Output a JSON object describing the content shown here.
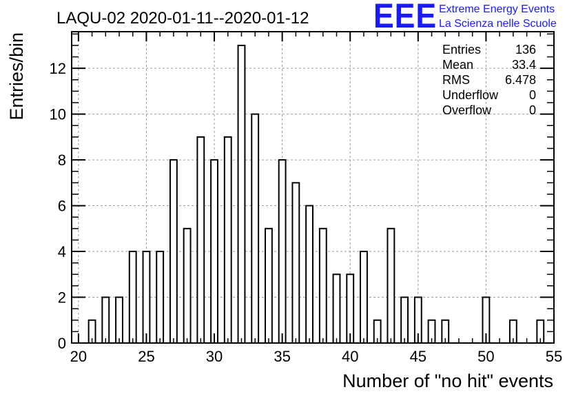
{
  "logo": {
    "mark": "EEE",
    "line1": "Extreme Energy Events",
    "line2": "La Scienza nelle Scuole",
    "color": "#1a1aff"
  },
  "stats": [
    {
      "label": "Entries",
      "value": "136"
    },
    {
      "label": "Mean",
      "value": "33.4"
    },
    {
      "label": "RMS",
      "value": "6.478"
    },
    {
      "label": "Underflow",
      "value": "0"
    },
    {
      "label": "Overflow",
      "value": "0"
    }
  ],
  "chart_data": {
    "type": "bar",
    "title": "LAQU-02 2020-01-11--2020-01-12",
    "xlabel": "Number of \"no hit\" events",
    "ylabel": "Entries/bin",
    "xlim": [
      19.5,
      55.0
    ],
    "ylim": [
      0,
      13.6
    ],
    "xticks": [
      20,
      25,
      30,
      35,
      40,
      45,
      50,
      55
    ],
    "yticks": [
      0,
      2,
      4,
      6,
      8,
      10,
      12
    ],
    "grid": true,
    "legend": "none",
    "bin_width": 0.5,
    "x": [
      21,
      22,
      23,
      24,
      25,
      26,
      27,
      28,
      29,
      30,
      31,
      32,
      33,
      34,
      35,
      36,
      37,
      38,
      39,
      40,
      41,
      42,
      43,
      44,
      45,
      46,
      47,
      50,
      52,
      54
    ],
    "values": [
      1,
      2,
      2,
      4,
      4,
      4,
      8,
      5,
      9,
      8,
      9,
      13,
      10,
      5,
      8,
      7,
      6,
      5,
      3,
      3,
      4,
      1,
      5,
      2,
      2,
      1,
      1,
      2,
      1,
      1
    ],
    "bar_fill": "#ffffff",
    "bar_stroke": "#000000"
  }
}
